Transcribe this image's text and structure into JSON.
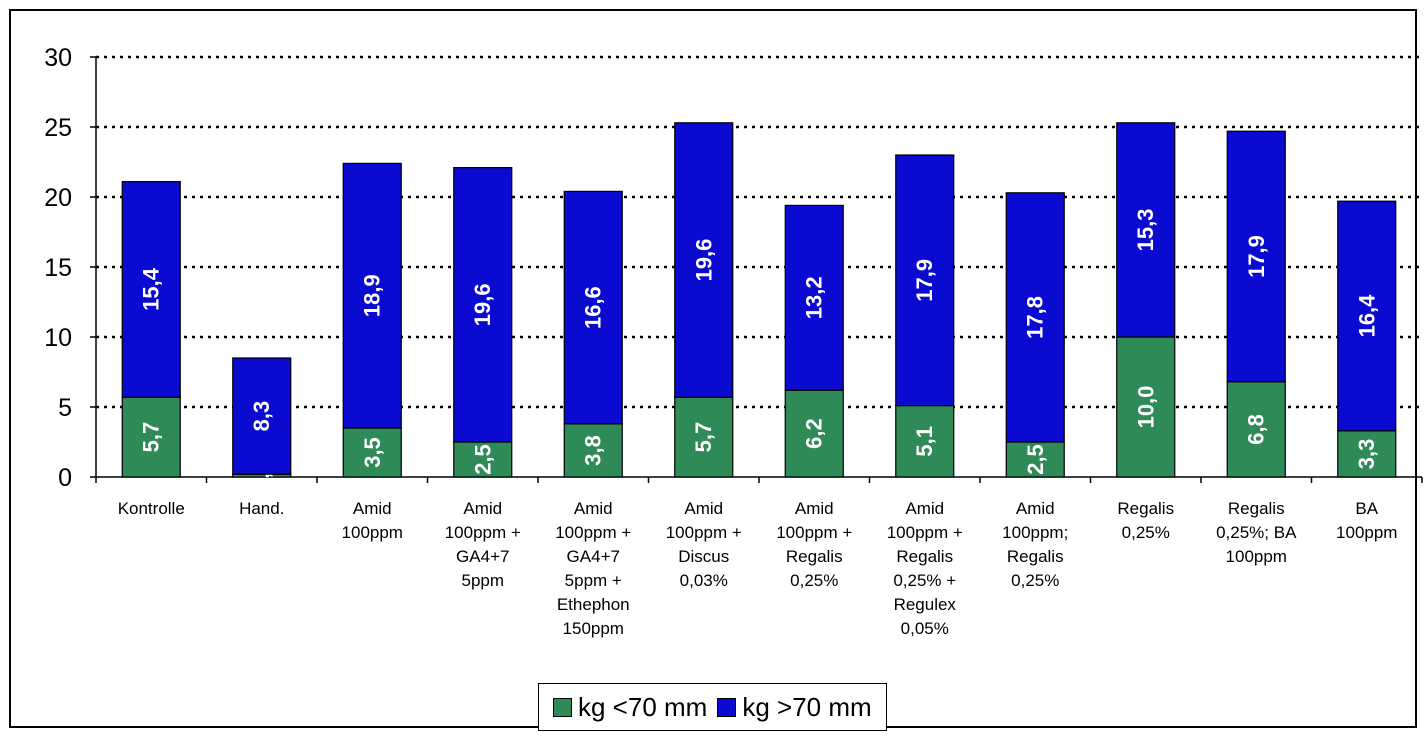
{
  "chart_data": {
    "type": "bar",
    "stacked": true,
    "categories": [
      "Kontrolle",
      "Hand.",
      "Amid 100ppm",
      "Amid 100ppm + GA4+7 5ppm",
      "Amid 100ppm + GA4+7 5ppm + Ethephon 150ppm",
      "Amid 100ppm + Discus 0,03%",
      "Amid 100ppm + Regalis 0,25%",
      "Amid 100ppm + Regalis 0,25% + Regulex 0,05%",
      "Amid 100ppm; Regalis 0,25%",
      "Regalis 0,25%",
      "Regalis 0,25%; BA 100ppm",
      "BA 100ppm"
    ],
    "category_lines": [
      [
        "Kontrolle"
      ],
      [
        "Hand."
      ],
      [
        "Amid",
        "100ppm"
      ],
      [
        "Amid",
        "100ppm +",
        "GA4+7",
        "5ppm"
      ],
      [
        "Amid",
        "100ppm +",
        "GA4+7",
        "5ppm +",
        "Ethephon",
        "150ppm"
      ],
      [
        "Amid",
        "100ppm +",
        "Discus",
        "0,03%"
      ],
      [
        "Amid",
        "100ppm +",
        "Regalis",
        "0,25%"
      ],
      [
        "Amid",
        "100ppm +",
        "Regalis",
        "0,25% +",
        "Regulex",
        "0,05%"
      ],
      [
        "Amid",
        "100ppm;",
        "Regalis",
        "0,25%"
      ],
      [
        "Regalis",
        "0,25%"
      ],
      [
        "Regalis",
        "0,25%; BA",
        "100ppm"
      ],
      [
        "BA",
        "100ppm"
      ]
    ],
    "series": [
      {
        "name": "kg <70 mm",
        "color": "#2e8b57",
        "values": [
          5.7,
          0.2,
          3.5,
          2.5,
          3.8,
          5.7,
          6.2,
          5.1,
          2.5,
          10.0,
          6.8,
          3.3
        ],
        "labels": [
          "5,7",
          "0,2",
          "3,5",
          "2,5",
          "3,8",
          "5,7",
          "6,2",
          "5,1",
          "2,5",
          "10,0",
          "6,8",
          "3,3"
        ]
      },
      {
        "name": "kg >70 mm",
        "color": "#0a0ad0",
        "values": [
          15.4,
          8.3,
          18.9,
          19.6,
          16.6,
          19.6,
          13.2,
          17.9,
          17.8,
          15.3,
          17.9,
          16.4
        ],
        "labels": [
          "15,4",
          "8,3",
          "18,9",
          "19,6",
          "16,6",
          "19,6",
          "13,2",
          "17,9",
          "17,8",
          "15,3",
          "17,9",
          "16,4"
        ]
      }
    ],
    "ylim": [
      0,
      30
    ],
    "yticks": [
      0,
      5,
      10,
      15,
      20,
      25,
      30
    ],
    "grid": "horizontal dotted",
    "legend": "bottom-center",
    "title": "",
    "xlabel": "",
    "ylabel": ""
  }
}
